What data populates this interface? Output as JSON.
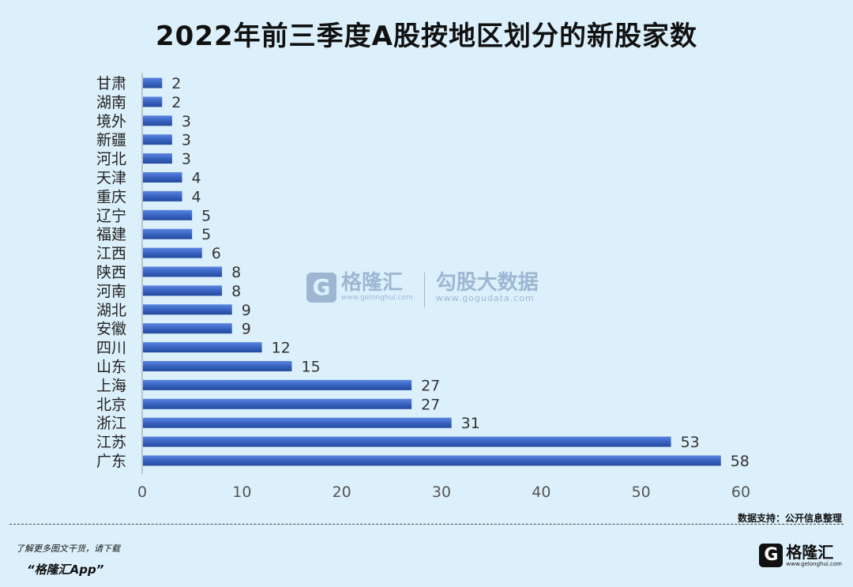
{
  "chart_data": {
    "type": "bar",
    "orientation": "horizontal",
    "title": "2022年前三季度A股按地区划分的新股家数",
    "categories": [
      "甘肃",
      "湖南",
      "境外",
      "新疆",
      "河北",
      "天津",
      "重庆",
      "辽宁",
      "福建",
      "江西",
      "陕西",
      "河南",
      "湖北",
      "安徽",
      "四川",
      "山东",
      "上海",
      "北京",
      "浙江",
      "江苏",
      "广东"
    ],
    "values": [
      2,
      2,
      3,
      3,
      3,
      4,
      4,
      5,
      5,
      6,
      8,
      8,
      9,
      9,
      12,
      15,
      27,
      27,
      31,
      53,
      58
    ],
    "xlim": [
      0,
      60
    ],
    "xticks": [
      0,
      10,
      20,
      30,
      40,
      50,
      60
    ],
    "grid": false,
    "bar_color": "#3a63c2"
  },
  "watermark": {
    "brand1": "格隆汇",
    "url1": "www.gelonghui.com",
    "brand2": "勾股大数据",
    "url2": "www.gogudata.com",
    "logo_letter": "G"
  },
  "footer": {
    "source": "数据支持：公开信息整理",
    "promo_line1": "了解更多图文干货，请下载",
    "promo_line2": "“格隆汇App”",
    "logo_name": "格隆汇",
    "logo_url": "www.gelonghui.com",
    "logo_letter": "G"
  }
}
